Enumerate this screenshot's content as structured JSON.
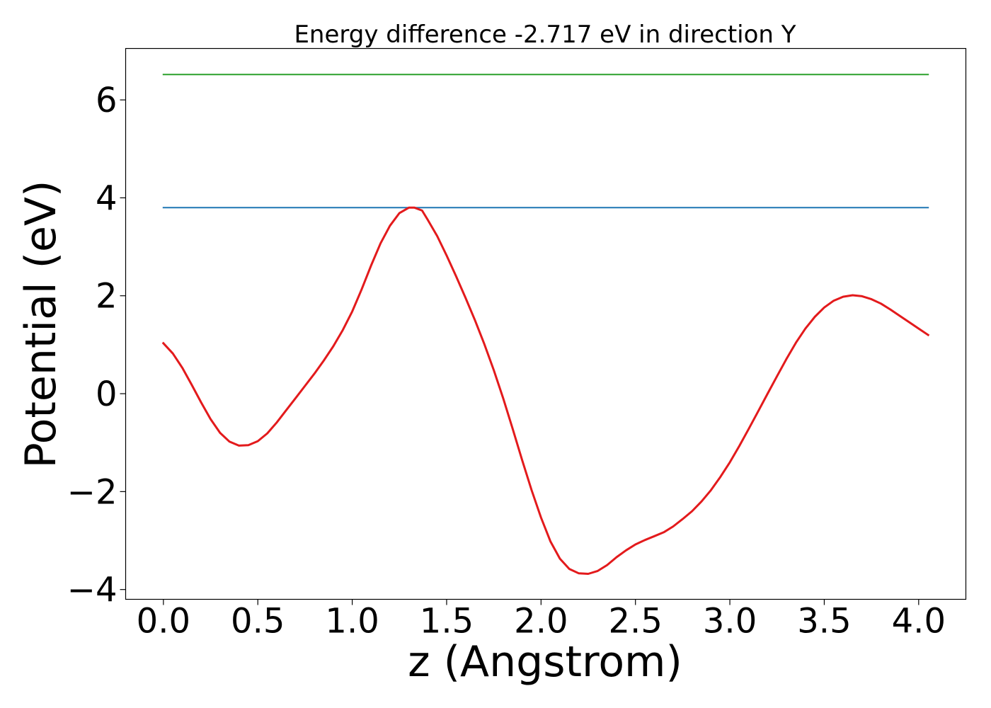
{
  "chart_data": {
    "type": "line",
    "title": "Energy difference -2.717 eV in direction Y",
    "xlabel": "z (Angstrom)",
    "ylabel": "Potential (eV)",
    "xlim": [
      -0.2,
      4.25
    ],
    "ylim": [
      -4.2,
      7.05
    ],
    "xticks": [
      0.0,
      0.5,
      1.0,
      1.5,
      2.0,
      2.5,
      3.0,
      3.5,
      4.0
    ],
    "xtick_labels": [
      "0.0",
      "0.5",
      "1.0",
      "1.5",
      "2.0",
      "2.5",
      "3.0",
      "3.5",
      "4.0"
    ],
    "yticks": [
      -4,
      -2,
      0,
      2,
      4,
      6
    ],
    "ytick_labels": [
      "−4",
      "−2",
      "0",
      "2",
      "4",
      "6"
    ],
    "grid": false,
    "series": [
      {
        "color": "#2ca02c",
        "x": [
          0.0,
          4.05
        ],
        "y": [
          6.52,
          6.52
        ]
      },
      {
        "color": "#1f77b4",
        "x": [
          0.0,
          4.05
        ],
        "y": [
          3.8,
          3.8
        ]
      },
      {
        "color": "#e31a1c",
        "x": [
          0.0,
          0.05,
          0.1,
          0.15,
          0.2,
          0.25,
          0.3,
          0.35,
          0.4,
          0.45,
          0.5,
          0.55,
          0.6,
          0.65,
          0.7,
          0.75,
          0.8,
          0.85,
          0.9,
          0.95,
          1.0,
          1.05,
          1.1,
          1.15,
          1.2,
          1.25,
          1.3,
          1.33,
          1.37,
          1.4,
          1.45,
          1.5,
          1.55,
          1.6,
          1.65,
          1.7,
          1.75,
          1.8,
          1.85,
          1.9,
          1.95,
          2.0,
          2.05,
          2.1,
          2.15,
          2.2,
          2.25,
          2.3,
          2.35,
          2.4,
          2.45,
          2.5,
          2.55,
          2.6,
          2.65,
          2.7,
          2.75,
          2.8,
          2.85,
          2.9,
          2.95,
          3.0,
          3.05,
          3.1,
          3.15,
          3.2,
          3.25,
          3.3,
          3.35,
          3.4,
          3.45,
          3.5,
          3.55,
          3.6,
          3.65,
          3.7,
          3.75,
          3.8,
          3.85,
          3.9,
          3.95,
          4.0,
          4.05
        ],
        "y": [
          1.03,
          0.82,
          0.53,
          0.18,
          -0.18,
          -0.52,
          -0.8,
          -0.98,
          -1.06,
          -1.05,
          -0.97,
          -0.81,
          -0.59,
          -0.34,
          -0.09,
          0.16,
          0.41,
          0.68,
          0.97,
          1.3,
          1.68,
          2.13,
          2.62,
          3.07,
          3.43,
          3.69,
          3.8,
          3.8,
          3.74,
          3.55,
          3.22,
          2.82,
          2.4,
          1.96,
          1.5,
          1.01,
          0.48,
          -0.1,
          -0.72,
          -1.36,
          -1.97,
          -2.53,
          -3.02,
          -3.37,
          -3.58,
          -3.67,
          -3.68,
          -3.62,
          -3.5,
          -3.34,
          -3.2,
          -3.08,
          -2.99,
          -2.91,
          -2.83,
          -2.71,
          -2.56,
          -2.4,
          -2.2,
          -1.97,
          -1.7,
          -1.4,
          -1.07,
          -0.72,
          -0.36,
          0.0,
          0.36,
          0.71,
          1.04,
          1.33,
          1.57,
          1.76,
          1.9,
          1.98,
          2.01,
          1.99,
          1.93,
          1.84,
          1.72,
          1.59,
          1.46,
          1.33,
          1.2
        ]
      }
    ]
  }
}
